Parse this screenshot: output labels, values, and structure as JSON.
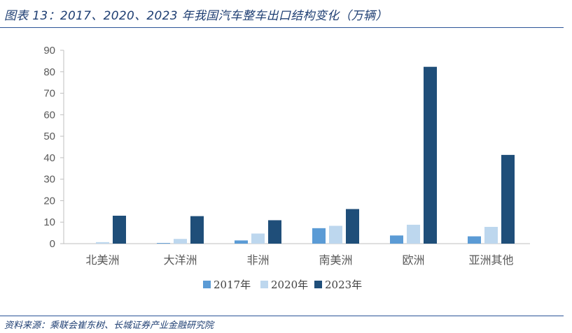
{
  "header": {
    "title": "图表 13：2017、2020、2023 年我国汽车整车出口结构变化（万辆）"
  },
  "footer": {
    "source": "资料来源：乘联会崔东树、长城证券产业金融研究院"
  },
  "colors": {
    "rule": "#2b5597",
    "text": "#1f3f73",
    "axis": "#bfbfbf",
    "tick_text": "#595959"
  },
  "chart_data": {
    "type": "bar",
    "title": "",
    "xlabel": "",
    "ylabel": "",
    "ylim": [
      0,
      90
    ],
    "yticks": [
      0,
      10,
      20,
      30,
      40,
      50,
      60,
      70,
      80,
      90
    ],
    "grid": false,
    "legend_position": "bottom",
    "categories": [
      "北美洲",
      "大洋洲",
      "非洲",
      "南美洲",
      "欧洲",
      "亚洲其他"
    ],
    "series": [
      {
        "name": "2017年",
        "color": "#5b9bd5",
        "values": [
          0,
          0.3,
          1.5,
          7.2,
          3.8,
          3.4
        ]
      },
      {
        "name": "2020年",
        "color": "#bdd7ee",
        "values": [
          0.7,
          2.2,
          4.7,
          8.3,
          8.8,
          7.8
        ]
      },
      {
        "name": "2023年",
        "color": "#1f4e79",
        "values": [
          13.0,
          12.8,
          10.9,
          16.1,
          82.3,
          41.3
        ]
      }
    ]
  }
}
